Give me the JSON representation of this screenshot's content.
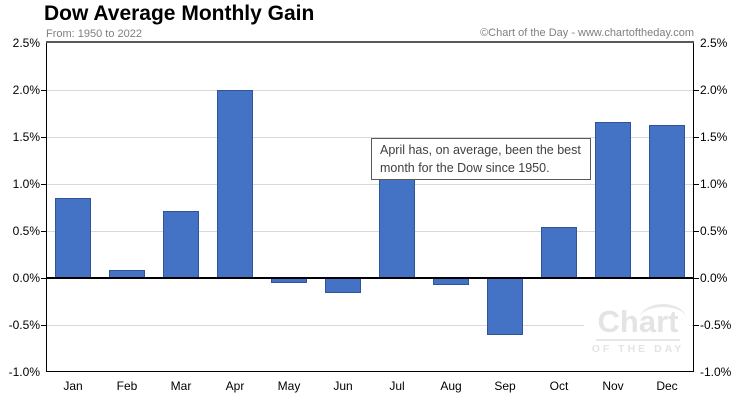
{
  "header": {
    "title": "Dow Average Monthly Gain",
    "subtitle": "From: 1950 to 2022",
    "copyright": "©Chart of the Day - www.chartoftheday.com"
  },
  "annotation": {
    "lines": [
      "April has, on average, been the best",
      "month for the Dow since 1950."
    ]
  },
  "watermark": {
    "word": "Chart",
    "tagline": "OF THE DAY"
  },
  "colors": {
    "bar_fill": "#4472c4",
    "bar_border": "#2f5597",
    "gridline": "#d9d9d9",
    "zero_line": "#000000",
    "top_border": "#595959",
    "muted_text": "#7f7f7f",
    "annotation_text": "#3f3f3f",
    "watermark_text": "#e7e7e7"
  },
  "chart_data": {
    "type": "bar",
    "title": "Dow Average Monthly Gain",
    "subtitle": "From: 1950 to 2022",
    "categories": [
      "Jan",
      "Feb",
      "Mar",
      "Apr",
      "May",
      "Jun",
      "Jul",
      "Aug",
      "Sep",
      "Oct",
      "Nov",
      "Dec"
    ],
    "values": [
      0.85,
      0.09,
      0.71,
      2.0,
      -0.05,
      -0.16,
      1.23,
      -0.07,
      -0.61,
      0.54,
      1.66,
      1.63
    ],
    "unit": "%",
    "xlabel": "",
    "ylabel": "",
    "ylim": [
      -1.0,
      2.5
    ],
    "yticks": [
      2.5,
      2.0,
      1.5,
      1.0,
      0.5,
      0.0,
      -0.5,
      -1.0
    ],
    "ytick_labels": [
      "2.5%",
      "2.0%",
      "1.5%",
      "1.0%",
      "0.5%",
      "0.0%",
      "-0.5%",
      "-1.0%"
    ],
    "grid": true,
    "axis_labels_sides": "both",
    "legend": "none"
  }
}
